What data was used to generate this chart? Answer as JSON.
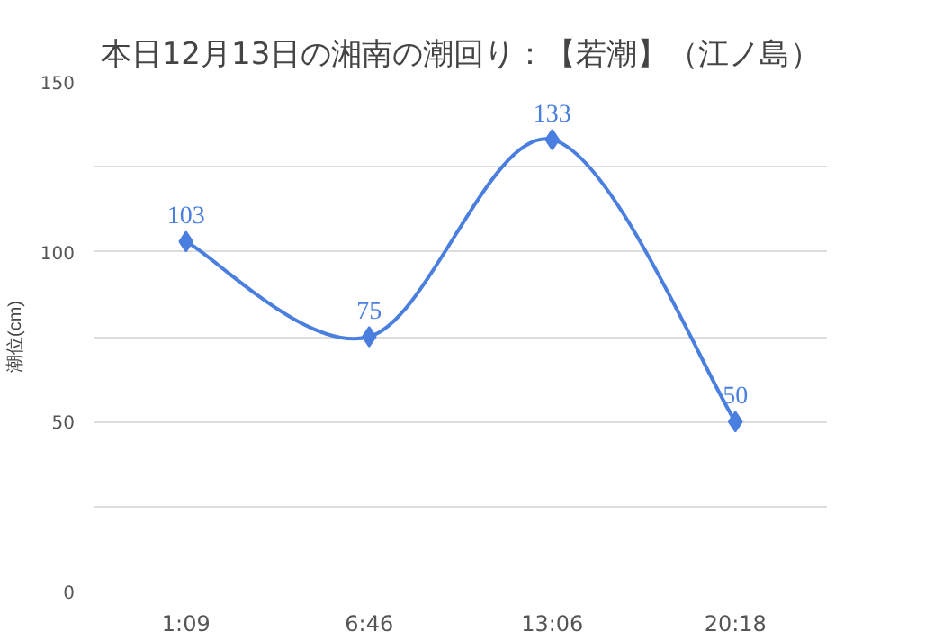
{
  "chart_data": {
    "type": "line",
    "title": "本日12月13日の湘南の潮回り：【若潮】（江ノ島）",
    "ylabel": "潮位(cm)",
    "categories": [
      "1:09",
      "6:46",
      "13:06",
      "20:18"
    ],
    "values": [
      103,
      75,
      133,
      50
    ],
    "color": "#4a7fe0",
    "marker": "diamond",
    "data_labels": true,
    "ylim": [
      0,
      150
    ],
    "yticks": [
      0,
      {
        "value": 25,
        "label": null
      },
      50,
      {
        "value": 75,
        "label": null
      },
      100,
      {
        "value": 125,
        "label": null
      },
      150
    ],
    "grid": "y"
  }
}
